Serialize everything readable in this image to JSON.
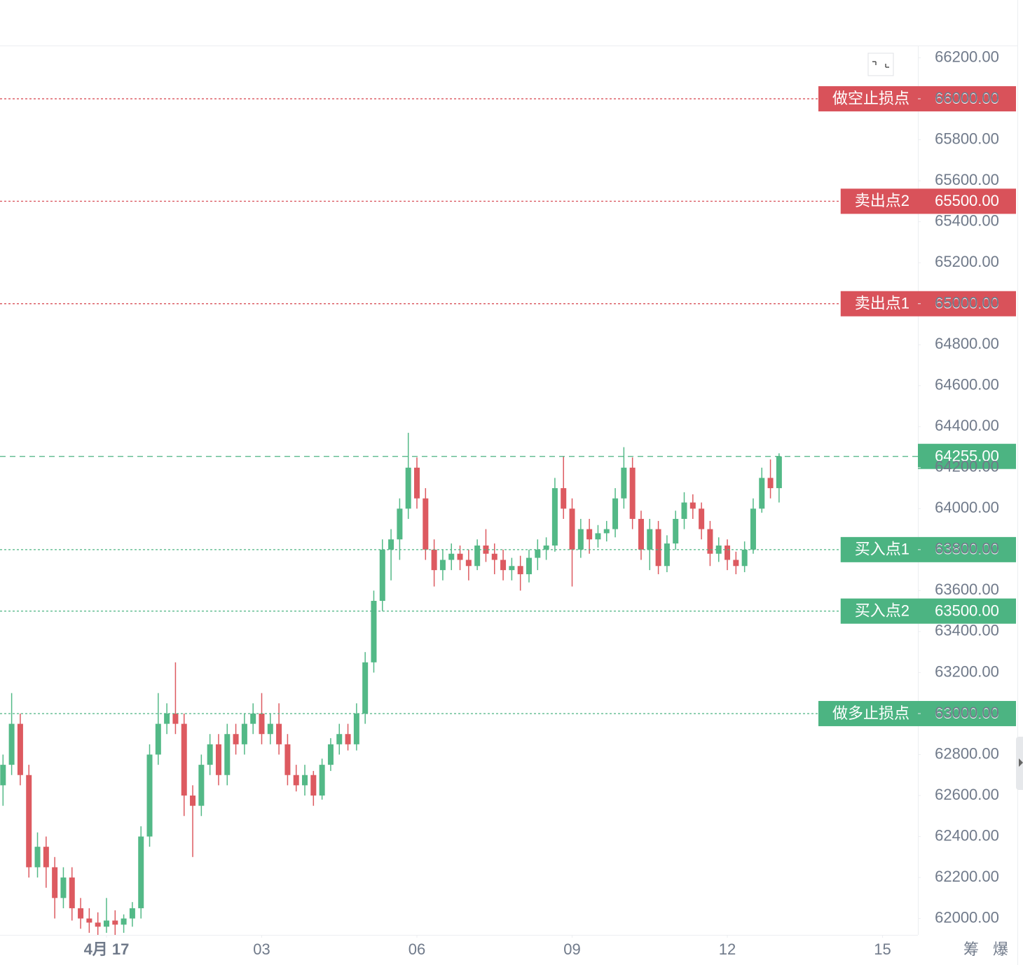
{
  "chart_data": {
    "type": "candlestick",
    "xlim": [
      -0.35,
      106.1
    ],
    "xticks": [
      {
        "value": 12,
        "label": "4月 17"
      },
      {
        "value": 30,
        "label": "03"
      },
      {
        "value": 48,
        "label": "06"
      },
      {
        "value": 66,
        "label": "09"
      },
      {
        "value": 84,
        "label": "12"
      },
      {
        "value": 102,
        "label": "15"
      }
    ],
    "ylim": [
      61920,
      66260
    ],
    "yticks": [
      {
        "value": 62000,
        "label": "62000.00"
      },
      {
        "value": 62200,
        "label": "62200.00"
      },
      {
        "value": 62400,
        "label": "62400.00"
      },
      {
        "value": 62600,
        "label": "62600.00"
      },
      {
        "value": 62800,
        "label": "62800.00"
      },
      {
        "value": 63000,
        "label": "63000.00"
      },
      {
        "value": 63200,
        "label": "63200.00"
      },
      {
        "value": 63400,
        "label": "63400.00"
      },
      {
        "value": 63600,
        "label": "63600.00"
      },
      {
        "value": 63800,
        "label": "63800.00"
      },
      {
        "value": 64000,
        "label": "64000.00"
      },
      {
        "value": 64200,
        "label": "64200.00"
      },
      {
        "value": 64400,
        "label": "64400.00"
      },
      {
        "value": 64600,
        "label": "64600.00"
      },
      {
        "value": 64800,
        "label": "64800.00"
      },
      {
        "value": 65000,
        "label": "65000.00"
      },
      {
        "value": 65200,
        "label": "65200.00"
      },
      {
        "value": 65400,
        "label": "65400.00"
      },
      {
        "value": 65600,
        "label": "65600.00"
      },
      {
        "value": 65800,
        "label": "65800.00"
      },
      {
        "value": 66000,
        "label": "66000.00"
      },
      {
        "value": 66200,
        "label": "66200.00"
      }
    ],
    "up_color": "#53b987",
    "down_color": "#dd5a60",
    "series": [
      {
        "x": [
          0,
          1,
          2,
          3,
          4,
          5,
          6,
          7,
          8,
          9,
          10,
          11,
          12,
          13,
          14,
          15,
          16,
          17,
          18,
          19,
          20,
          21,
          22,
          23,
          24,
          25,
          26,
          27,
          28,
          29,
          30,
          31,
          32,
          33,
          34,
          35,
          36,
          37,
          38,
          39,
          40,
          41,
          42,
          43,
          44,
          45,
          46,
          47,
          48,
          49,
          50,
          51,
          52,
          53,
          54,
          55,
          56,
          57,
          58,
          59,
          60,
          61,
          62,
          63,
          64,
          65,
          66,
          67,
          68,
          69,
          70,
          71,
          72,
          73,
          74,
          75,
          76,
          77,
          78,
          79,
          80,
          81,
          82,
          83,
          84,
          85,
          86,
          87,
          88,
          89,
          90
        ],
        "open": [
          62650,
          62750,
          62950,
          62700,
          62250,
          62350,
          62250,
          62100,
          62200,
          62050,
          62000,
          61980,
          61960,
          61990,
          61970,
          62000,
          62050,
          62400,
          62800,
          62950,
          63000,
          62950,
          62600,
          62550,
          62750,
          62850,
          62700,
          62900,
          62850,
          62950,
          63000,
          62900,
          62950,
          62850,
          62700,
          62650,
          62700,
          62600,
          62750,
          62850,
          62900,
          62850,
          63000,
          63250,
          63550,
          63800,
          63850,
          64000,
          64200,
          64050,
          63800,
          63700,
          63750,
          63780,
          63750,
          63720,
          63820,
          63780,
          63750,
          63700,
          63720,
          63680,
          63760,
          63800,
          63820,
          64100,
          64000,
          63800,
          63900,
          63850,
          63880,
          63900,
          64050,
          64200,
          63950,
          63800,
          63900,
          63720,
          63830,
          63950,
          64030,
          64000,
          63900,
          63780,
          63820,
          63750,
          63720,
          63800,
          64000,
          64150,
          64100
        ],
        "high": [
          62800,
          63100,
          63000,
          62750,
          62420,
          62400,
          62300,
          62250,
          62250,
          62100,
          62050,
          62030,
          62100,
          62040,
          62020,
          62080,
          62450,
          62850,
          63100,
          63050,
          63250,
          63000,
          62650,
          62800,
          62900,
          62900,
          62950,
          62950,
          63000,
          63050,
          63100,
          63000,
          63050,
          62900,
          62750,
          62750,
          62720,
          62780,
          62880,
          62950,
          62950,
          63050,
          63300,
          63600,
          63850,
          63900,
          64050,
          64370,
          64250,
          64100,
          63850,
          63800,
          63830,
          63820,
          63800,
          63850,
          63900,
          63830,
          63800,
          63760,
          63770,
          63800,
          63850,
          63860,
          64150,
          64255,
          64050,
          63950,
          63950,
          63920,
          63940,
          64100,
          64300,
          64250,
          63990,
          63950,
          63940,
          63870,
          63990,
          64080,
          64070,
          64030,
          63940,
          63860,
          63850,
          63790,
          63840,
          64050,
          64200,
          64240,
          64270
        ],
        "low": [
          62550,
          62700,
          62650,
          62200,
          62200,
          62150,
          62000,
          62050,
          61990,
          61950,
          61930,
          61920,
          61930,
          61920,
          61930,
          61960,
          62000,
          62350,
          62750,
          62900,
          62900,
          62500,
          62300,
          62500,
          62700,
          62650,
          62650,
          62800,
          62800,
          62900,
          62850,
          62850,
          62800,
          62650,
          62620,
          62600,
          62550,
          62580,
          62720,
          62800,
          62820,
          62820,
          62950,
          63200,
          63500,
          63650,
          63750,
          63950,
          64000,
          63750,
          63620,
          63650,
          63700,
          63700,
          63650,
          63700,
          63740,
          63680,
          63650,
          63650,
          63600,
          63640,
          63700,
          63750,
          63790,
          63950,
          63620,
          63760,
          63780,
          63810,
          63840,
          63860,
          64000,
          63900,
          63750,
          63700,
          63680,
          63690,
          63800,
          63900,
          63950,
          63850,
          63720,
          63740,
          63700,
          63680,
          63690,
          63780,
          63980,
          64050,
          64030
        ],
        "close": [
          62750,
          62950,
          62700,
          62250,
          62350,
          62250,
          62100,
          62200,
          62050,
          62000,
          61980,
          61960,
          61990,
          61970,
          62000,
          62050,
          62400,
          62800,
          62950,
          63000,
          62950,
          62600,
          62550,
          62750,
          62850,
          62700,
          62900,
          62850,
          62950,
          63000,
          62900,
          62950,
          62850,
          62700,
          62650,
          62700,
          62600,
          62750,
          62850,
          62900,
          62850,
          63000,
          63250,
          63550,
          63800,
          63850,
          64000,
          64200,
          64050,
          63800,
          63700,
          63750,
          63780,
          63750,
          63720,
          63820,
          63780,
          63750,
          63700,
          63720,
          63680,
          63760,
          63800,
          63820,
          64100,
          64000,
          63800,
          63900,
          63850,
          63880,
          63900,
          64050,
          64200,
          63950,
          63800,
          63900,
          63720,
          63830,
          63950,
          64030,
          64000,
          63900,
          63780,
          63820,
          63750,
          63720,
          63800,
          64000,
          64150,
          64100,
          64255
        ]
      }
    ],
    "price_lines": [
      {
        "label": "做空止损点",
        "value": 66000,
        "value_label": "66000.00",
        "color": "#d9525a"
      },
      {
        "label": "卖出点2",
        "value": 65500,
        "value_label": "65500.00",
        "color": "#d9525a"
      },
      {
        "label": "卖出点1",
        "value": 65000,
        "value_label": "65000.00",
        "color": "#d9525a"
      },
      {
        "label": "买入点1",
        "value": 63800,
        "value_label": "63800.00",
        "color": "#4cb482"
      },
      {
        "label": "买入点2",
        "value": 63500,
        "value_label": "63500.00",
        "color": "#4cb482"
      },
      {
        "label": "做多止损点",
        "value": 63000,
        "value_label": "63000.00",
        "color": "#4cb482"
      }
    ],
    "last_price": {
      "value": 64255,
      "value_label": "64255.00",
      "color": "#4cb482"
    },
    "corner_labels": [
      "筹",
      "爆"
    ]
  }
}
